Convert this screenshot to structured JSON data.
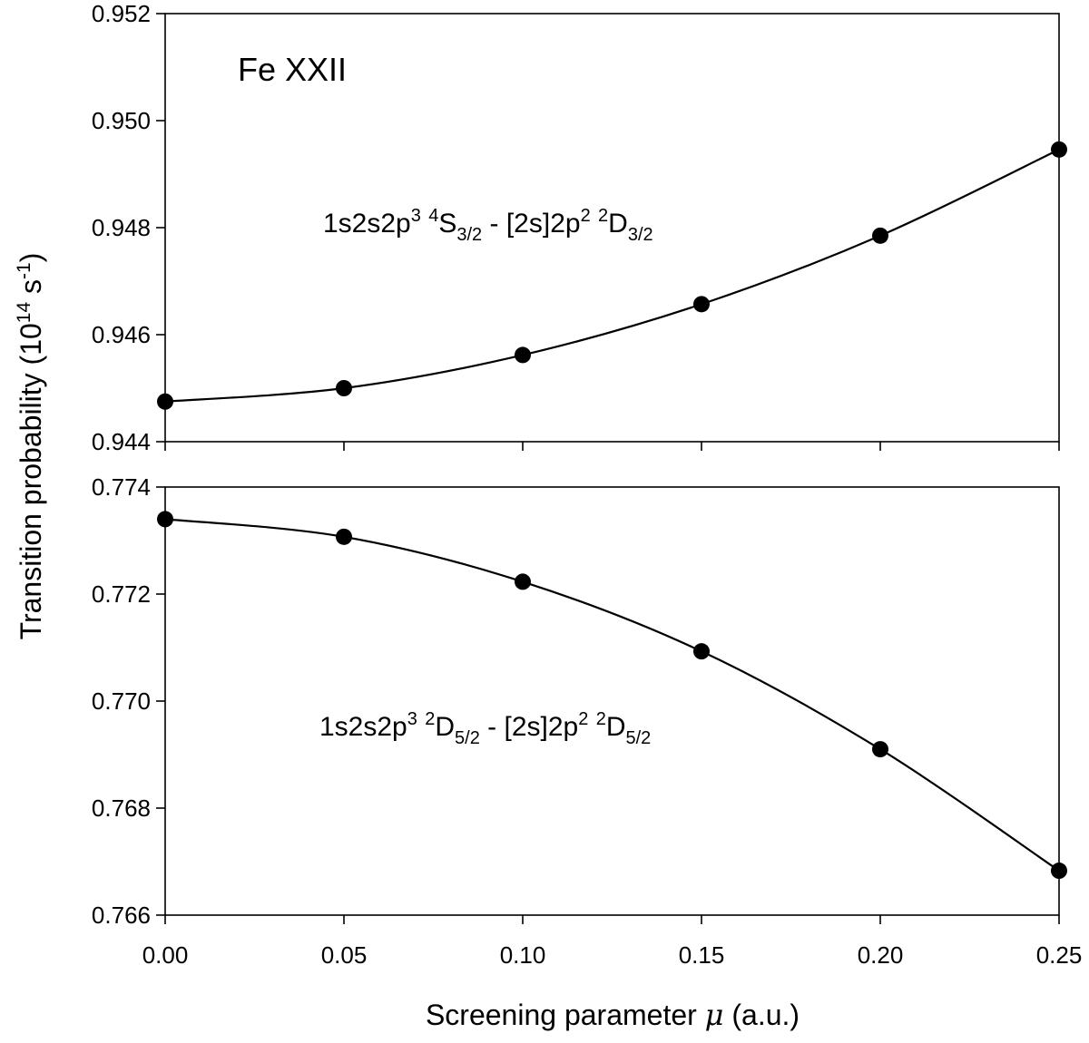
{
  "chart_data": [
    {
      "type": "line",
      "title": "Fe XXII",
      "annotation": {
        "config_lower": "1s2s2p",
        "config_lower_exp": "3",
        "term_lower_mult": "4",
        "term_lower_letter": "S",
        "term_lower_j": "3/2",
        "separator": " - ",
        "config_upper": "[2s]2p",
        "config_upper_exp": "2",
        "term_upper_mult": "2",
        "term_upper_letter": "D",
        "term_upper_j": "3/2"
      },
      "x": [
        0.0,
        0.05,
        0.1,
        0.15,
        0.2,
        0.25
      ],
      "values": [
        0.94475,
        0.945,
        0.94562,
        0.94657,
        0.94785,
        0.94946
      ],
      "ylim": [
        0.944,
        0.952
      ],
      "yticks": [
        "0.944",
        "0.946",
        "0.948",
        "0.950",
        "0.952"
      ],
      "ytick_values": [
        0.944,
        0.946,
        0.948,
        0.95,
        0.952
      ]
    },
    {
      "type": "line",
      "annotation": {
        "config_lower": "1s2s2p",
        "config_lower_exp": "3",
        "term_lower_mult": "2",
        "term_lower_letter": "D",
        "term_lower_j": "5/2",
        "separator": " - ",
        "config_upper": "[2s]2p",
        "config_upper_exp": "2",
        "term_upper_mult": "2",
        "term_upper_letter": "D",
        "term_upper_j": "5/2"
      },
      "x": [
        0.0,
        0.05,
        0.1,
        0.15,
        0.2,
        0.25
      ],
      "values": [
        0.7734,
        0.77307,
        0.77223,
        0.77093,
        0.7691,
        0.76683
      ],
      "ylim": [
        0.766,
        0.774
      ],
      "yticks": [
        "0.766",
        "0.768",
        "0.770",
        "0.772",
        "0.774"
      ],
      "ytick_values": [
        0.766,
        0.768,
        0.77,
        0.772,
        0.774
      ]
    }
  ],
  "shared": {
    "xlim": [
      0.0,
      0.25
    ],
    "xticks": [
      "0.00",
      "0.05",
      "0.10",
      "0.15",
      "0.20",
      "0.25"
    ],
    "xtick_values": [
      0.0,
      0.05,
      0.1,
      0.15,
      0.2,
      0.25
    ],
    "xlabel_main": "Screening parameter ",
    "xlabel_symbol": "μ",
    "xlabel_units": " (a.u.)",
    "ylabel_main": "Transition probability (10",
    "ylabel_exp1": "14",
    "ylabel_mid": " s",
    "ylabel_exp2": "-1",
    "ylabel_close": ")"
  }
}
